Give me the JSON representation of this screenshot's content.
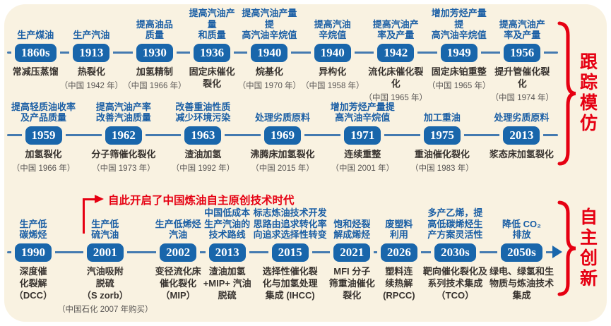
{
  "colors": {
    "cream": "#f9f2e1",
    "blue": "#1966ab",
    "track": "#447ab0",
    "red": "#e60012"
  },
  "annotation": {
    "text": "自此开启了中国炼油自主原创技术时代"
  },
  "brackets": [
    {
      "label": "跟踪模仿"
    },
    {
      "label": "自主创新"
    }
  ],
  "rows": [
    {
      "nodes": [
        {
          "desc": "生产煤油",
          "year": "1860s",
          "tech": "常减压蒸馏",
          "cn": ""
        },
        {
          "desc": "生产汽油",
          "year": "1913",
          "tech": "热裂化",
          "cn": "（中国 1942 年）"
        },
        {
          "desc": "提高油品\n质量",
          "year": "1930",
          "tech": "加氢精制",
          "cn": "（中国 1966 年）"
        },
        {
          "desc": "提高汽油产量\n和质量",
          "year": "1936",
          "tech": "固定床催化\n裂化",
          "cn": ""
        },
        {
          "desc": "提高汽油产量提\n高汽油辛烷值",
          "year": "1940",
          "tech": "烷基化",
          "cn": "（中国 1970 年）"
        },
        {
          "desc": "提高汽油\n辛烷值",
          "year": "1940",
          "tech": "异构化",
          "cn": "（中国 1958 年）"
        },
        {
          "desc": "提高汽油产\n率及产量",
          "year": "1942",
          "tech": "流化床催化裂化",
          "cn": "（中国 1965 年）"
        },
        {
          "desc": "增加芳烃产量提\n高汽油辛烷值",
          "year": "1949",
          "tech": "固定床铂重整",
          "cn": "（中国 1965 年）"
        },
        {
          "desc": "提高汽油产\n率及产量",
          "year": "1956",
          "tech": "提升管催化裂化",
          "cn": "（中国 1974 年）"
        }
      ]
    },
    {
      "nodes": [
        {
          "desc": "提高轻质油收率\n及产品质量",
          "year": "1959",
          "tech": "加氢裂化",
          "cn": "（中国 1966 年）"
        },
        {
          "desc": "提高汽油产率\n改善汽油质量",
          "year": "1962",
          "tech": "分子筛催化裂化",
          "cn": "（中国 1973 年）"
        },
        {
          "desc": "改善重油性质\n减少环境污染",
          "year": "1963",
          "tech": "渣油加氢",
          "cn": "（中国 1992 年）"
        },
        {
          "desc": "处理劣质原料",
          "year": "1969",
          "tech": "沸腾床加氢裂化",
          "cn": "（中国 2015 年）"
        },
        {
          "desc": "增加芳烃产量提\n高汽油辛烷值",
          "year": "1971",
          "tech": "连续重整",
          "cn": "（中国 2001 年）"
        },
        {
          "desc": "加工重油",
          "year": "1975",
          "tech": "重油催化裂化",
          "cn": "（中国 1983 年）"
        },
        {
          "desc": "处理劣质原料",
          "year": "2013",
          "tech": "浆态床加氢裂化",
          "cn": ""
        }
      ]
    },
    {
      "nodes": [
        {
          "desc": "生产低\n碳烯烃",
          "year": "1990",
          "tech": "深度催\n化裂解\n（DCC）",
          "cn": ""
        },
        {
          "desc": "生产低\n硫汽油",
          "year": "2001",
          "tech": "汽油吸附\n脱硫\n（S zorb）",
          "cn": "（中国石化 2007 年购买）"
        },
        {
          "desc": "生产低烯烃\n汽油",
          "year": "2002",
          "tech": "变径流化床\n催化裂化\n（MIP）",
          "cn": ""
        },
        {
          "desc": "中国低成本\n生产汽油的\n技术路线",
          "year": "2013",
          "tech": "渣油加氢\n+MIP+ 汽油\n脱硫",
          "cn": ""
        },
        {
          "desc": "标志炼油技术开发\n思路由追求转化率\n向追求选择性转变",
          "year": "2015",
          "tech": "选择性催化裂\n化与加氢处理\n集成 (IHCC)",
          "cn": ""
        },
        {
          "desc": "饱和烃裂\n解成烯烃",
          "year": "2021",
          "tech": "MFI 分子\n筛重油催化\n裂化",
          "cn": ""
        },
        {
          "desc": "废塑料\n利用",
          "year": "2026",
          "tech": "塑料连\n续热解\n(RPCC)",
          "cn": ""
        },
        {
          "desc": "多产乙烯，提\n高低碳烯烃生\n产方案灵活性",
          "year": "2030s",
          "tech": "靶向催化裂化及\n系列技术集成\n（TCO）",
          "cn": ""
        },
        {
          "desc": "降低 CO₂\n排放",
          "year": "2050s",
          "tech": "绿电、绿氢和生\n物质与炼油技术\n集成",
          "cn": ""
        }
      ]
    }
  ]
}
